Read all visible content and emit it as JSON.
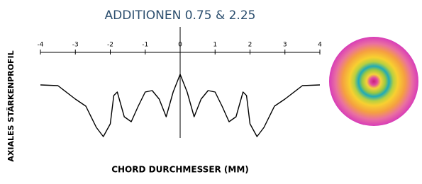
{
  "chart_data": {
    "type": "line",
    "title": "ADDITIONEN 0.75 & 2.25",
    "x_label": "CHORD DURCHMESSER (MM)",
    "y_label": "AXIALES STÄRKENPROFIL",
    "xlim": [
      -4,
      4
    ],
    "xticks": [
      -4,
      -3,
      -2,
      -1,
      0,
      1,
      2,
      3,
      4
    ],
    "ylim": [
      0,
      1.3
    ],
    "color": "#000000",
    "x": [
      -4,
      -3.5,
      -3.0,
      -2.7,
      -2.4,
      -2.2,
      -2.0,
      -1.9,
      -1.8,
      -1.6,
      -1.4,
      -1.2,
      -1.0,
      -0.8,
      -0.6,
      -0.4,
      -0.2,
      0,
      0.2,
      0.4,
      0.6,
      0.8,
      1.0,
      1.2,
      1.4,
      1.6,
      1.8,
      1.9,
      2.0,
      2.2,
      2.4,
      2.7,
      3.0,
      3.5,
      4
    ],
    "values": [
      0.8,
      0.79,
      0.6,
      0.5,
      0.2,
      0.07,
      0.25,
      0.65,
      0.7,
      0.35,
      0.28,
      0.5,
      0.7,
      0.72,
      0.6,
      0.35,
      0.7,
      0.95,
      0.7,
      0.35,
      0.6,
      0.72,
      0.7,
      0.5,
      0.28,
      0.35,
      0.7,
      0.65,
      0.25,
      0.07,
      0.2,
      0.5,
      0.6,
      0.79,
      0.8
    ]
  }
}
